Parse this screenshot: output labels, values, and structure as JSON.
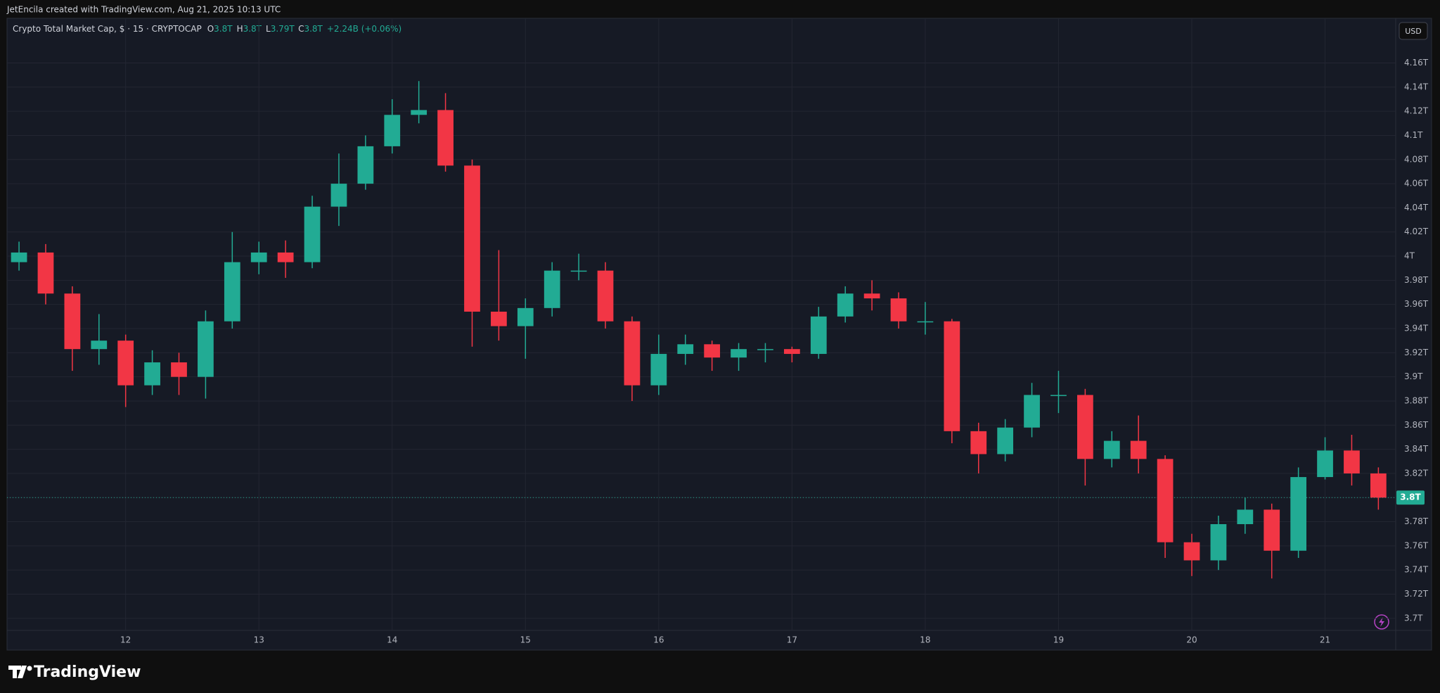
{
  "header": {
    "credit": "JetEncila created with TradingView.com, Aug 21, 2025 10:13 UTC"
  },
  "chart_data": {
    "type": "candlestick",
    "title": "Crypto Total Market Cap, $ · 15 · CRYPTOCAP",
    "ohlc": [
      {
        "label": "O",
        "value": "3.8T"
      },
      {
        "label": "H",
        "value": "3.8T"
      },
      {
        "label": "L",
        "value": "3.79T"
      },
      {
        "label": "C",
        "value": "3.8T"
      }
    ],
    "change": "+2.24B (+0.06%)",
    "currency": "USD",
    "up_color": "#22ab94",
    "down_color": "#f23645",
    "x": [
      11.2,
      11.4,
      11.6,
      11.8,
      12.0,
      12.2,
      12.4,
      12.6,
      12.8,
      13.0,
      13.2,
      13.4,
      13.6,
      13.8,
      14.0,
      14.2,
      14.4,
      14.6,
      14.8,
      15.0,
      15.2,
      15.4,
      15.6,
      15.8,
      16.0,
      16.2,
      16.4,
      16.6,
      16.8,
      17.0,
      17.2,
      17.4,
      17.6,
      17.8,
      18.0,
      18.2,
      18.4,
      18.6,
      18.8,
      19.0,
      19.2,
      19.4,
      19.6,
      19.8,
      20.0,
      20.2,
      20.4,
      20.6,
      20.8,
      21.0,
      21.2,
      21.4
    ],
    "open": [
      3.995,
      4.003,
      3.969,
      3.923,
      3.93,
      3.893,
      3.912,
      3.9,
      3.946,
      3.995,
      4.003,
      3.995,
      4.041,
      4.06,
      4.091,
      4.117,
      4.121,
      4.075,
      3.954,
      3.942,
      3.957,
      3.988,
      3.988,
      3.946,
      3.893,
      3.919,
      3.927,
      3.916,
      3.923,
      3.923,
      3.919,
      3.95,
      3.969,
      3.965,
      3.946,
      3.946,
      3.855,
      3.836,
      3.858,
      3.885,
      3.885,
      3.832,
      3.847,
      3.832,
      3.763,
      3.748,
      3.778,
      3.79,
      3.756,
      3.817,
      3.839,
      3.82
    ],
    "high": [
      4.012,
      4.01,
      3.975,
      3.952,
      3.935,
      3.922,
      3.92,
      3.955,
      4.02,
      4.012,
      4.013,
      4.05,
      4.085,
      4.1,
      4.13,
      4.145,
      4.135,
      4.08,
      4.005,
      3.965,
      3.995,
      4.002,
      3.995,
      3.95,
      3.935,
      3.935,
      3.93,
      3.928,
      3.928,
      3.925,
      3.958,
      3.975,
      3.98,
      3.97,
      3.962,
      3.948,
      3.862,
      3.865,
      3.895,
      3.905,
      3.89,
      3.855,
      3.868,
      3.835,
      3.77,
      3.785,
      3.8,
      3.795,
      3.825,
      3.85,
      3.852,
      3.825
    ],
    "low": [
      3.988,
      3.96,
      3.905,
      3.91,
      3.875,
      3.885,
      3.885,
      3.882,
      3.94,
      3.985,
      3.982,
      3.99,
      4.025,
      4.055,
      4.085,
      4.11,
      4.07,
      3.925,
      3.93,
      3.915,
      3.95,
      3.98,
      3.94,
      3.88,
      3.885,
      3.91,
      3.905,
      3.905,
      3.912,
      3.912,
      3.915,
      3.945,
      3.955,
      3.94,
      3.935,
      3.845,
      3.82,
      3.83,
      3.85,
      3.87,
      3.81,
      3.825,
      3.82,
      3.75,
      3.735,
      3.74,
      3.77,
      3.733,
      3.75,
      3.815,
      3.81,
      3.79
    ],
    "close": [
      4.003,
      3.969,
      3.923,
      3.93,
      3.893,
      3.912,
      3.9,
      3.946,
      3.995,
      4.003,
      3.995,
      4.041,
      4.06,
      4.091,
      4.117,
      4.121,
      4.075,
      3.954,
      3.942,
      3.957,
      3.988,
      3.988,
      3.946,
      3.893,
      3.919,
      3.927,
      3.916,
      3.923,
      3.923,
      3.919,
      3.95,
      3.969,
      3.965,
      3.946,
      3.946,
      3.855,
      3.836,
      3.858,
      3.885,
      3.885,
      3.832,
      3.847,
      3.832,
      3.763,
      3.748,
      3.778,
      3.79,
      3.756,
      3.817,
      3.839,
      3.82,
      3.8
    ],
    "last_price": {
      "value": 3.8,
      "label": "3.8T"
    },
    "xlim": [
      11.11,
      21.53
    ],
    "xticks": [
      12,
      13,
      14,
      15,
      16,
      17,
      18,
      19,
      20,
      21
    ],
    "ylim": [
      3.69,
      4.197
    ],
    "yticks": [
      {
        "value": 3.7,
        "label": "3.7T"
      },
      {
        "value": 3.72,
        "label": "3.72T"
      },
      {
        "value": 3.74,
        "label": "3.74T"
      },
      {
        "value": 3.76,
        "label": "3.76T"
      },
      {
        "value": 3.78,
        "label": "3.78T"
      },
      {
        "value": 3.8,
        "label": "3.8T"
      },
      {
        "value": 3.82,
        "label": "3.82T"
      },
      {
        "value": 3.84,
        "label": "3.84T"
      },
      {
        "value": 3.86,
        "label": "3.86T"
      },
      {
        "value": 3.88,
        "label": "3.88T"
      },
      {
        "value": 3.9,
        "label": "3.9T"
      },
      {
        "value": 3.92,
        "label": "3.92T"
      },
      {
        "value": 3.94,
        "label": "3.94T"
      },
      {
        "value": 3.96,
        "label": "3.96T"
      },
      {
        "value": 3.98,
        "label": "3.98T"
      },
      {
        "value": 4,
        "label": "4T"
      },
      {
        "value": 4.02,
        "label": "4.02T"
      },
      {
        "value": 4.04,
        "label": "4.04T"
      },
      {
        "value": 4.06,
        "label": "4.06T"
      },
      {
        "value": 4.08,
        "label": "4.08T"
      },
      {
        "value": 4.1,
        "label": "4.1T"
      },
      {
        "value": 4.12,
        "label": "4.12T"
      },
      {
        "value": 4.14,
        "label": "4.14T"
      },
      {
        "value": 4.16,
        "label": "4.16T"
      }
    ],
    "grid": true
  },
  "footer": {
    "brand": "TradingView"
  }
}
